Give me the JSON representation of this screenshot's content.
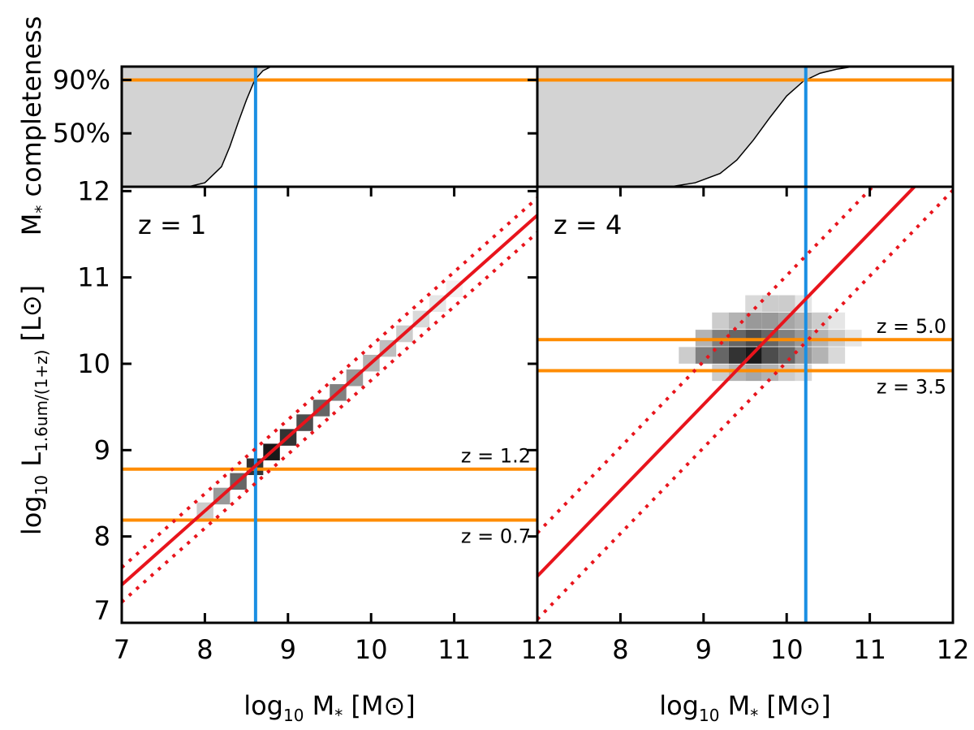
{
  "chart_data": [
    {
      "type": "area",
      "ylabel": [
        "M",
        "*",
        " completeness"
      ],
      "xlim": [
        7,
        12
      ],
      "ylim": [
        10,
        100
      ],
      "yticks": [
        {
          "value": 50,
          "label": "50%",
          "color": "#000000"
        },
        {
          "value": 90,
          "label": "90%",
          "color": "#c07a1c"
        }
      ],
      "x": [
        7,
        7.8,
        8.0,
        8.2,
        8.3,
        8.4,
        8.5,
        8.6,
        8.7,
        8.8,
        12
      ],
      "values": [
        10,
        10,
        13,
        25,
        40,
        58,
        75,
        90,
        97,
        100,
        100
      ],
      "hline": {
        "value": 90,
        "color": "#ff8c00"
      },
      "vline": {
        "value": 8.61,
        "color": "#1a8fe3"
      }
    },
    {
      "type": "area",
      "xlim": [
        7,
        12
      ],
      "ylim": [
        10,
        100
      ],
      "x": [
        7,
        8.6,
        8.9,
        9.2,
        9.4,
        9.6,
        9.8,
        10.0,
        10.2,
        10.4,
        10.6,
        10.8,
        12
      ],
      "values": [
        10,
        10,
        13,
        20,
        30,
        45,
        62,
        78,
        89,
        95,
        98,
        100,
        100
      ],
      "hline": {
        "value": 90,
        "color": "#ff8c00"
      },
      "vline": {
        "value": 10.23,
        "color": "#1a8fe3"
      }
    },
    {
      "type": "heatmap",
      "annotation": "z = 1",
      "xlabel": [
        "log",
        "10",
        " M",
        "*",
        " [M⊙]"
      ],
      "ylabel": [
        "log",
        "10",
        " L",
        "1.6um/(1+z)",
        " [L⊙]"
      ],
      "xlim": [
        7,
        12
      ],
      "ylim": [
        7,
        12.05
      ],
      "xticks": [
        7,
        8,
        9,
        10,
        11,
        12
      ],
      "yticks": [
        7,
        8,
        9,
        10,
        11,
        12
      ],
      "cells": {
        "x": [
          8.0,
          8.2,
          8.4,
          8.6,
          8.8,
          9.0,
          9.2,
          9.4,
          9.6,
          9.8,
          10.0,
          10.2,
          10.4,
          10.6,
          10.8,
          11.0
        ],
        "y": [
          8.3,
          8.47,
          8.64,
          8.81,
          8.98,
          9.15,
          9.32,
          9.49,
          9.67,
          9.84,
          10.01,
          10.18,
          10.35,
          10.52,
          10.7,
          10.87
        ],
        "values": [
          0.2,
          0.4,
          0.6,
          0.8,
          0.9,
          0.8,
          0.7,
          0.6,
          0.5,
          0.4,
          0.3,
          0.25,
          0.2,
          0.15,
          0.1,
          0.05
        ]
      },
      "lines": [
        {
          "x": [
            7,
            12
          ],
          "values": [
            7.44,
            11.72
          ],
          "color": "#e8141c",
          "style": "solid"
        },
        {
          "x": [
            7,
            12
          ],
          "values": [
            7.64,
            11.92
          ],
          "color": "#e8141c",
          "style": "dotted"
        },
        {
          "x": [
            7,
            12
          ],
          "values": [
            7.24,
            11.52
          ],
          "color": "#e8141c",
          "style": "dotted"
        }
      ],
      "hlines": [
        {
          "value": 8.78,
          "label": "z = 1.2",
          "position": "above",
          "color": "#ff8c00"
        },
        {
          "value": 8.19,
          "label": "z = 0.7",
          "position": "below",
          "color": "#ff8c00"
        }
      ],
      "vline": {
        "value": 8.61,
        "color": "#1a8fe3"
      }
    },
    {
      "type": "heatmap",
      "annotation": "z = 4",
      "xlabel": [
        "log",
        "10",
        " M",
        "*",
        " [M⊙]"
      ],
      "xlim": [
        7,
        12
      ],
      "ylim": [
        7,
        12.05
      ],
      "xticks": [
        8,
        9,
        10,
        11,
        12
      ],
      "cells": {
        "x": [
          8.8,
          9.0,
          9.2,
          9.4,
          9.6,
          9.8,
          10.0,
          10.2,
          10.4,
          10.6,
          9.0,
          9.2,
          9.4,
          9.6,
          9.8,
          10.0,
          10.2,
          10.4,
          10.6,
          10.8,
          9.2,
          9.4,
          9.6,
          9.8,
          10.0,
          10.2,
          10.4,
          10.6,
          9.2,
          9.4,
          9.6,
          9.8,
          10.0,
          10.2,
          9.6,
          9.8,
          10.0,
          10.2
        ],
        "y": [
          10.1,
          10.1,
          10.1,
          10.1,
          10.1,
          10.1,
          10.1,
          10.1,
          10.1,
          10.1,
          10.3,
          10.3,
          10.3,
          10.3,
          10.3,
          10.3,
          10.3,
          10.3,
          10.3,
          10.3,
          10.5,
          10.5,
          10.5,
          10.5,
          10.5,
          10.5,
          10.5,
          10.5,
          9.9,
          9.9,
          9.9,
          9.9,
          9.9,
          9.9,
          10.7,
          10.7,
          10.7,
          10.7
        ],
        "values": [
          0.2,
          0.5,
          0.6,
          0.8,
          0.9,
          0.7,
          0.6,
          0.4,
          0.3,
          0.15,
          0.3,
          0.5,
          0.6,
          0.7,
          0.6,
          0.5,
          0.4,
          0.3,
          0.2,
          0.1,
          0.2,
          0.3,
          0.4,
          0.4,
          0.35,
          0.3,
          0.2,
          0.1,
          0.2,
          0.3,
          0.35,
          0.3,
          0.2,
          0.15,
          0.15,
          0.2,
          0.2,
          0.1
        ]
      },
      "lines": [
        {
          "x": [
            7,
            12
          ],
          "values": [
            7.54,
            12.51
          ],
          "color": "#e8141c",
          "style": "solid"
        },
        {
          "x": [
            7,
            12
          ],
          "values": [
            8.04,
            13.01
          ],
          "color": "#e8141c",
          "style": "dotted"
        },
        {
          "x": [
            7,
            12
          ],
          "values": [
            7.04,
            12.01
          ],
          "color": "#e8141c",
          "style": "dotted"
        }
      ],
      "hlines": [
        {
          "value": 10.28,
          "label": "z = 5.0",
          "position": "above",
          "color": "#ff8c00"
        },
        {
          "value": 9.92,
          "label": "z = 3.5",
          "position": "below",
          "color": "#ff8c00"
        }
      ],
      "vline": {
        "value": 10.23,
        "color": "#1a8fe3"
      }
    }
  ]
}
